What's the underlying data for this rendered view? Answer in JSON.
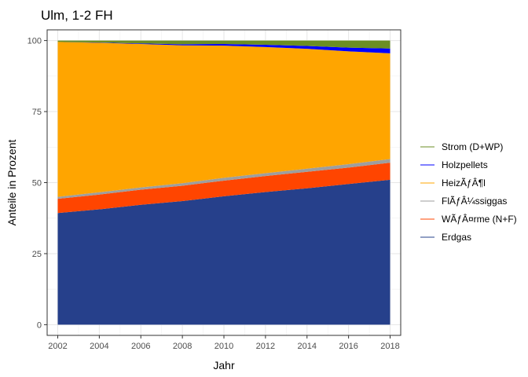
{
  "chart_data": {
    "type": "area",
    "stacked": true,
    "title": "Ulm, 1-2 FH",
    "xlabel": "Jahr",
    "ylabel": "Anteile in Prozent",
    "xlim": [
      2002,
      2018
    ],
    "ylim": [
      0,
      100
    ],
    "x_ticks": [
      2002,
      2004,
      2006,
      2008,
      2010,
      2012,
      2014,
      2016,
      2018
    ],
    "y_ticks": [
      0,
      25,
      50,
      75,
      100
    ],
    "grid": true,
    "legend_position": "right",
    "x": [
      2002,
      2004,
      2006,
      2008,
      2010,
      2012,
      2014,
      2016,
      2018
    ],
    "series": [
      {
        "name": "Erdgas",
        "color": "#26408B",
        "values": [
          39.3,
          40.6,
          42.2,
          43.5,
          45.2,
          46.7,
          48.0,
          49.5,
          51.0
        ]
      },
      {
        "name": "WÃƒÂ¤rme (N+F)",
        "color": "#FF4500",
        "values": [
          5.0,
          5.2,
          5.3,
          5.4,
          5.5,
          5.6,
          5.8,
          5.8,
          6.0
        ]
      },
      {
        "name": "FlÃƒÂ¼ssiggas",
        "color": "#9E9E9E",
        "values": [
          0.7,
          0.8,
          0.8,
          0.9,
          1.0,
          1.0,
          1.1,
          1.2,
          1.3
        ]
      },
      {
        "name": "HeizÃƒÂ¶l",
        "color": "#FFA500",
        "values": [
          54.5,
          52.6,
          50.5,
          48.5,
          46.5,
          44.4,
          42.2,
          39.7,
          37.2
        ]
      },
      {
        "name": "Holzpellets",
        "color": "#0000FF",
        "values": [
          0.0,
          0.1,
          0.2,
          0.4,
          0.6,
          0.8,
          1.0,
          1.3,
          1.7
        ]
      },
      {
        "name": "Strom (D+WP)",
        "color": "#6B8E23",
        "values": [
          0.5,
          0.7,
          1.0,
          1.3,
          1.2,
          1.5,
          1.9,
          2.5,
          2.8
        ]
      }
    ],
    "legend_order": [
      "Strom (D+WP)",
      "Holzpellets",
      "HeizÃƒÂ¶l",
      "FlÃƒÂ¼ssiggas",
      "WÃƒÂ¤rme (N+F)",
      "Erdgas"
    ]
  }
}
